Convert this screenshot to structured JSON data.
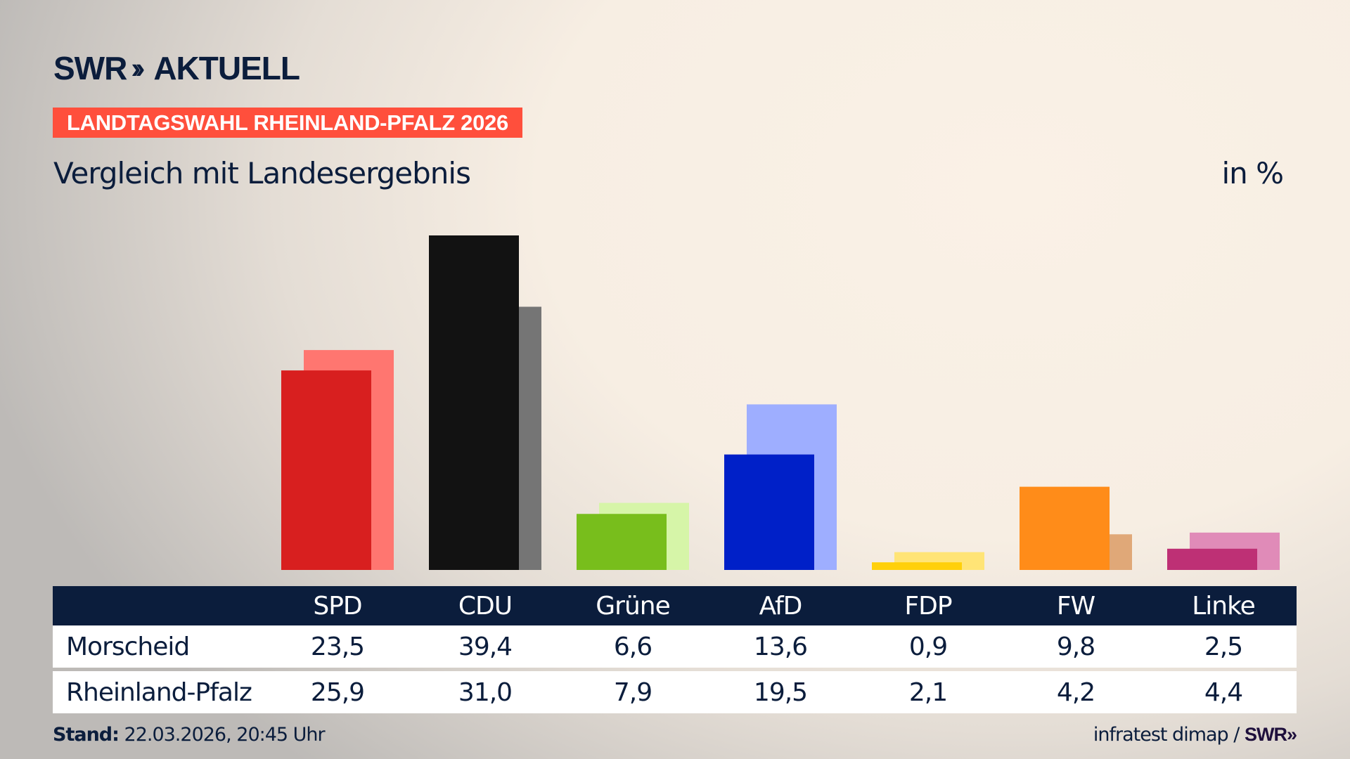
{
  "header": {
    "logo_text": "SWR",
    "logo_suffix": "AKTUELL",
    "banner": "LANDTAGSWAHL RHEINLAND-PFALZ 2026",
    "subtitle": "Vergleich mit Landesergebnis",
    "unit": "in %"
  },
  "chart_data": {
    "type": "bar",
    "categories": [
      "SPD",
      "CDU",
      "Grüne",
      "AfD",
      "FDP",
      "FW",
      "Linke"
    ],
    "series": [
      {
        "name": "Morscheid",
        "values": [
          23.5,
          39.4,
          6.6,
          13.6,
          0.9,
          9.8,
          2.5
        ],
        "display": [
          "23,5",
          "39,4",
          "6,6",
          "13,6",
          "0,9",
          "9,8",
          "2,5"
        ],
        "colors": [
          "#d81f1f",
          "#121212",
          "#78be1c",
          "#0020c8",
          "#ffd00a",
          "#ff8c19",
          "#be3075"
        ]
      },
      {
        "name": "Rheinland-Pfalz",
        "values": [
          25.9,
          31.0,
          7.9,
          19.5,
          2.1,
          4.2,
          4.4
        ],
        "display": [
          "25,9",
          "31,0",
          "7,9",
          "19,5",
          "2,1",
          "4,2",
          "4,4"
        ],
        "colors": [
          "#ff7670",
          "#757575",
          "#d6f5a8",
          "#9eaeff",
          "#ffe476",
          "#e0a878",
          "#e08bb8"
        ]
      }
    ],
    "ylim": [
      0,
      40
    ],
    "grid": false
  },
  "footer": {
    "stand_label": "Stand:",
    "stand_value": "22.03.2026, 20:45 Uhr",
    "source": "infratest dimap /",
    "source_logo": "SWR"
  }
}
